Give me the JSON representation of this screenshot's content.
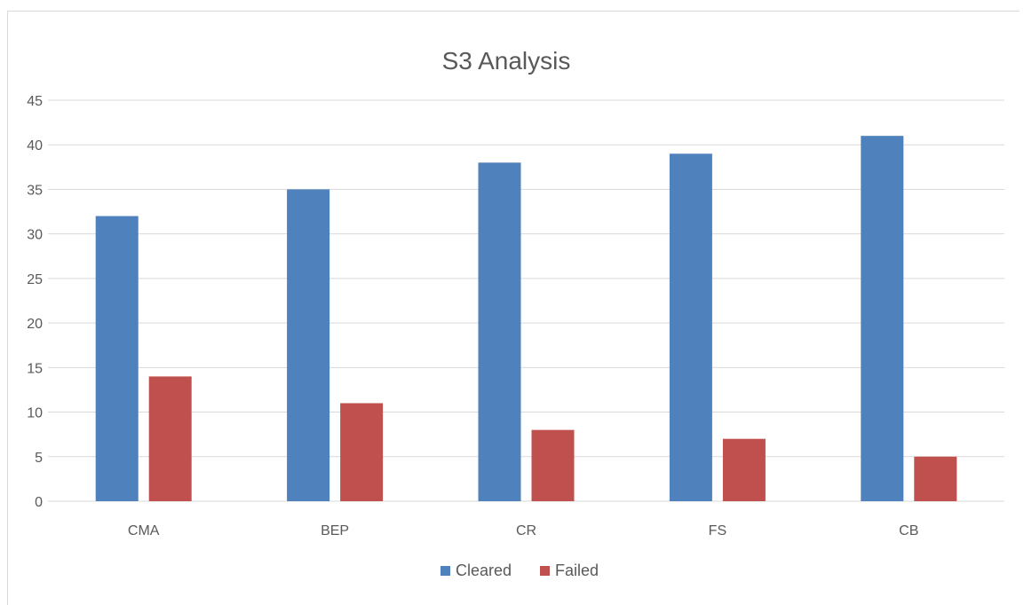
{
  "chart_data": {
    "type": "bar",
    "title": "S3 Analysis",
    "xlabel": "",
    "ylabel": "",
    "categories": [
      "CMA",
      "BEP",
      "CR",
      "FS",
      "CB"
    ],
    "series": [
      {
        "name": "Cleared",
        "values": [
          32,
          35,
          38,
          39,
          41
        ],
        "color": "#4f81bd"
      },
      {
        "name": "Failed",
        "values": [
          14,
          11,
          8,
          7,
          5
        ],
        "color": "#c0504d"
      }
    ],
    "ylim": [
      0,
      45
    ],
    "yticks": [
      0,
      5,
      10,
      15,
      20,
      25,
      30,
      35,
      40,
      45
    ],
    "grid": true,
    "legend_position": "bottom"
  }
}
